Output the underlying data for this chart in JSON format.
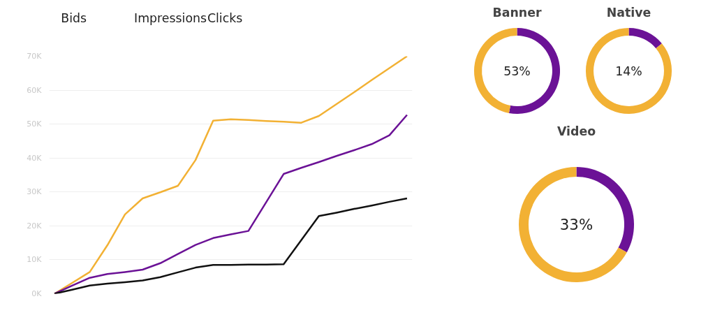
{
  "chart_data": [
    {
      "type": "line",
      "annotations": [
        "Bids",
        "Impressions",
        "Clicks"
      ],
      "categories": [
        null,
        null,
        null,
        null,
        null,
        null,
        null,
        null,
        null,
        null,
        null,
        null,
        null,
        null,
        null,
        null,
        null,
        null,
        null,
        null,
        null
      ],
      "ylim": [
        0,
        70000
      ],
      "yticks": [
        {
          "value": 0,
          "label": "0K"
        },
        {
          "value": 10000,
          "label": "10K"
        },
        {
          "value": 20000,
          "label": "20K"
        },
        {
          "value": 30000,
          "label": "30K"
        },
        {
          "value": 40000,
          "label": "40K"
        },
        {
          "value": 50000,
          "label": "50K"
        },
        {
          "value": 60000,
          "label": "60K"
        },
        {
          "value": 70000,
          "label": "70K"
        }
      ],
      "tick_labels": "y",
      "grid": "y",
      "marker": "none",
      "line_style": "solid",
      "series": [
        {
          "color": "#f2b134",
          "values": [
            0,
            3200,
            6400,
            14300,
            23400,
            28100,
            29900,
            31800,
            39400,
            51000,
            51400,
            51200,
            50900,
            50700,
            50400,
            52400,
            55900,
            59400,
            63000,
            66500,
            70000
          ]
        },
        {
          "color": "#6b1296",
          "values": [
            0,
            2400,
            4700,
            5800,
            6400,
            7100,
            9000,
            11700,
            14400,
            16400,
            17500,
            18500,
            26900,
            35300,
            37100,
            38800,
            40600,
            42300,
            44100,
            46700,
            52700
          ]
        },
        {
          "color": "#111111",
          "values": [
            0,
            1200,
            2400,
            3000,
            3400,
            3900,
            4900,
            6300,
            7700,
            8500,
            8500,
            8600,
            8600,
            8700,
            15800,
            22900,
            23900,
            25000,
            26000,
            27100,
            28100
          ]
        }
      ]
    },
    {
      "type": "donut",
      "title": "Banner",
      "categories": [
        null,
        null
      ],
      "values": [
        53,
        47
      ],
      "colors": [
        "#6b1296",
        "#f2b134"
      ],
      "annotations": [
        "53%"
      ]
    },
    {
      "type": "donut",
      "title": "Native",
      "categories": [
        null,
        null
      ],
      "values": [
        14,
        86
      ],
      "colors": [
        "#6b1296",
        "#f2b134"
      ],
      "annotations": [
        "14%"
      ]
    },
    {
      "type": "donut",
      "title": "Video",
      "categories": [
        null,
        null
      ],
      "values": [
        33,
        67
      ],
      "colors": [
        "#6b1296",
        "#f2b134"
      ],
      "annotations": [
        "33%"
      ]
    }
  ]
}
